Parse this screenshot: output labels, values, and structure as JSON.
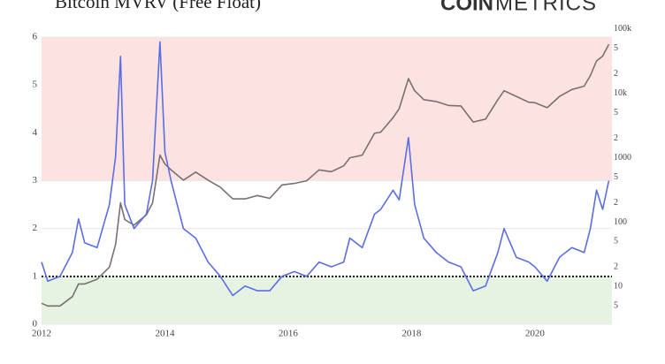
{
  "chart_data": {
    "type": "line",
    "title": "Bitcoin MVRV (Free Float)",
    "logo": [
      "COIN",
      "METRICS"
    ],
    "x": [
      2012.0,
      2012.1,
      2012.3,
      2012.5,
      2012.6,
      2012.7,
      2012.9,
      2013.1,
      2013.2,
      2013.28,
      2013.35,
      2013.5,
      2013.7,
      2013.8,
      2013.92,
      2014.0,
      2014.1,
      2014.3,
      2014.5,
      2014.7,
      2014.9,
      2015.1,
      2015.3,
      2015.5,
      2015.7,
      2015.9,
      2016.1,
      2016.3,
      2016.5,
      2016.7,
      2016.9,
      2017.0,
      2017.2,
      2017.4,
      2017.5,
      2017.7,
      2017.8,
      2017.95,
      2018.05,
      2018.2,
      2018.4,
      2018.6,
      2018.8,
      2019.0,
      2019.2,
      2019.4,
      2019.5,
      2019.7,
      2019.9,
      2020.0,
      2020.2,
      2020.4,
      2020.6,
      2020.8,
      2020.9,
      2021.0,
      2021.1,
      2021.2
    ],
    "series": [
      {
        "color": "#7a7070",
        "axis": "y2",
        "values": [
          5.5,
          5,
          5,
          7,
          11,
          11,
          13,
          20,
          45,
          200,
          110,
          90,
          130,
          200,
          1100,
          800,
          650,
          450,
          600,
          450,
          350,
          230,
          230,
          260,
          235,
          380,
          400,
          440,
          650,
          610,
          750,
          1000,
          1100,
          2400,
          2500,
          4200,
          5800,
          17000,
          11000,
          8000,
          7500,
          6500,
          6400,
          3600,
          4000,
          8000,
          11000,
          9000,
          7300,
          7200,
          6000,
          9000,
          11500,
          13000,
          19000,
          32000,
          38000,
          58000
        ]
      },
      {
        "color": "#5b6ee1",
        "values": [
          1.3,
          0.9,
          1.0,
          1.5,
          2.2,
          1.7,
          1.6,
          2.5,
          3.5,
          5.6,
          2.5,
          2.0,
          2.3,
          3.0,
          5.9,
          3.6,
          3.0,
          2.0,
          1.8,
          1.3,
          1.0,
          0.6,
          0.8,
          0.7,
          0.7,
          1.0,
          1.1,
          1.0,
          1.3,
          1.2,
          1.3,
          1.8,
          1.6,
          2.3,
          2.4,
          2.8,
          2.6,
          3.9,
          2.5,
          1.8,
          1.5,
          1.3,
          1.2,
          0.7,
          0.8,
          1.5,
          2.0,
          1.4,
          1.3,
          1.2,
          0.9,
          1.4,
          1.6,
          1.5,
          2.0,
          2.8,
          2.4,
          3.0
        ]
      }
    ],
    "xlim": [
      2012,
      2021.25
    ],
    "xticks": [
      2012,
      2014,
      2016,
      2018,
      2020
    ],
    "ylim": [
      0,
      6
    ],
    "yticks": [
      0,
      1,
      2,
      3,
      4,
      5,
      6
    ],
    "y2lim": [
      2.6,
      75000
    ],
    "y2scale": "log",
    "y2ticks": [
      5,
      10,
      {
        "value": 20,
        "label": "2"
      },
      {
        "value": 50,
        "label": "5"
      },
      100,
      {
        "value": 200,
        "label": "2"
      },
      {
        "value": 500,
        "label": "5"
      },
      1000,
      {
        "value": 2000,
        "label": "2"
      },
      {
        "value": 5000,
        "label": "5"
      },
      {
        "value": 10000,
        "label": "10k"
      },
      {
        "value": 20000,
        "label": "2"
      },
      {
        "value": 50000,
        "label": "5"
      },
      {
        "value": 100000,
        "label": "100k"
      }
    ],
    "bands": [
      {
        "from": 3,
        "to": 6,
        "color": "#fde2e2"
      },
      {
        "from": 0,
        "to": 1,
        "color": "#e6f3e3"
      }
    ],
    "reference_line": 1,
    "grid": true
  }
}
